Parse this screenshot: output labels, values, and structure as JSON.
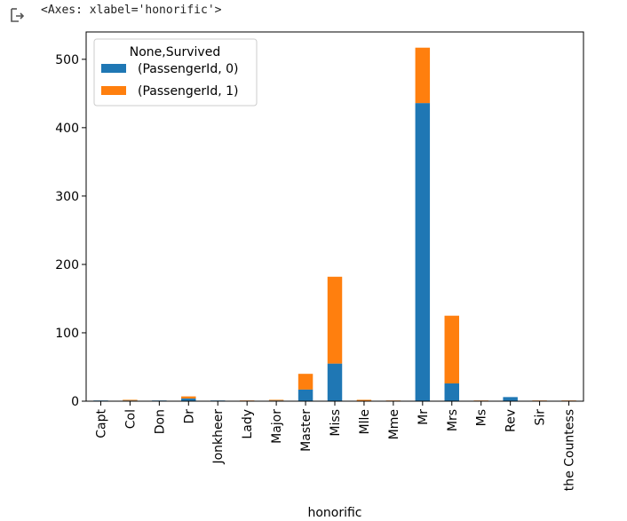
{
  "output_cell": {
    "icon": "output-arrow-icon",
    "text": "<Axes: xlabel='honorific'>"
  },
  "chart_data": {
    "type": "bar",
    "stacked": true,
    "xlabel": "honorific",
    "ylabel": "",
    "ylim": [
      0,
      540
    ],
    "yticks": [
      0,
      100,
      200,
      300,
      400,
      500
    ],
    "categories": [
      "Capt",
      "Col",
      "Don",
      "Dr",
      "Jonkheer",
      "Lady",
      "Major",
      "Master",
      "Miss",
      "Mlle",
      "Mme",
      "Mr",
      "Mrs",
      "Ms",
      "Rev",
      "Sir",
      "the Countess"
    ],
    "series": [
      {
        "name": "(PassengerId, 0)",
        "color": "#1f77b4",
        "values": [
          1,
          1,
          1,
          4,
          1,
          0,
          1,
          17,
          55,
          0,
          0,
          436,
          26,
          0,
          6,
          0,
          0
        ]
      },
      {
        "name": "(PassengerId, 1)",
        "color": "#ff7f0e",
        "values": [
          0,
          1,
          0,
          3,
          0,
          1,
          1,
          23,
          127,
          2,
          1,
          81,
          99,
          1,
          0,
          1,
          1
        ]
      }
    ],
    "legend": {
      "title": "None,Survived",
      "location": "upper left"
    },
    "grid": false
  }
}
